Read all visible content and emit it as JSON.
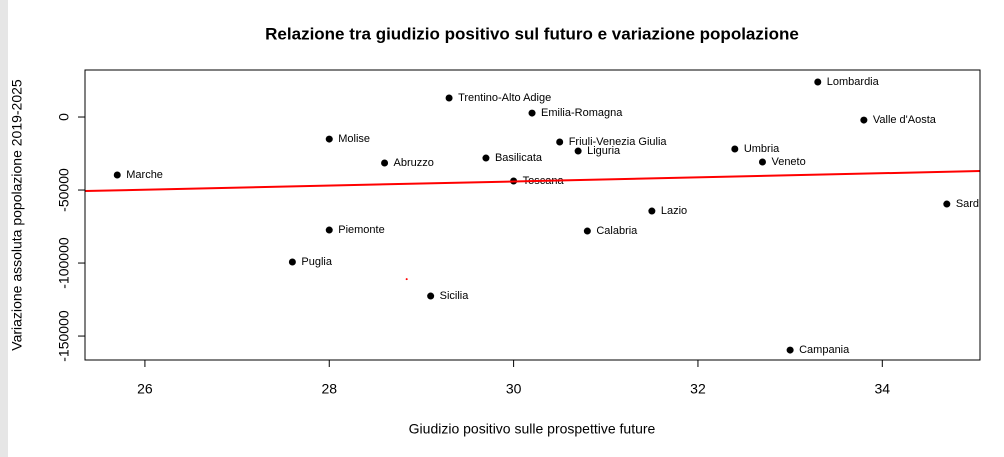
{
  "chart_data": {
    "type": "scatter",
    "title": "Relazione tra giudizio positivo sul futuro e variazione popolazione",
    "x_label": "Giudizio positivo sulle prospettive future",
    "y_label": "Variazione assoluta popolazione 2019-2025",
    "xlim": [
      25.35,
      35.06
    ],
    "ylim": [
      -166400,
      32200
    ],
    "xticks": [
      26,
      28,
      30,
      32,
      34
    ],
    "yticks": [
      0,
      -50000,
      -100000,
      -150000
    ],
    "series": [
      {
        "color": "#000000",
        "labels": [
          "Marche",
          "Molise",
          "Abruzzo",
          "Piemonte",
          "Puglia",
          "Sicilia",
          "Trentino-Alto Adige",
          "Emilia-Romagna",
          "Basilicata",
          "Toscana",
          "Friuli-Venezia Giulia",
          "Liguria",
          "Calabria",
          "Lazio",
          "Umbria",
          "Veneto",
          "Lombardia",
          "Valle d'Aosta",
          "Campania",
          "Sard"
        ],
        "x": [
          25.7,
          28.0,
          28.6,
          28.0,
          27.6,
          29.1,
          29.3,
          30.2,
          29.7,
          30.0,
          30.5,
          30.7,
          30.8,
          31.5,
          32.4,
          32.7,
          33.3,
          33.8,
          33.0,
          34.7
        ],
        "values": [
          -39700,
          -15100,
          -31500,
          -77400,
          -99300,
          -122600,
          13000,
          2700,
          -28100,
          -43800,
          -17100,
          -23300,
          -78100,
          -64400,
          -21900,
          -30800,
          24000,
          -2100,
          -159600,
          -59600
        ]
      }
    ],
    "trend_line": {
      "color": "#ff0000",
      "x": [
        25.35,
        35.06
      ],
      "values": [
        -50700,
        -37000
      ]
    },
    "marker": {
      "color": "#ff0000",
      "x": 28.84,
      "value": -111000
    }
  }
}
